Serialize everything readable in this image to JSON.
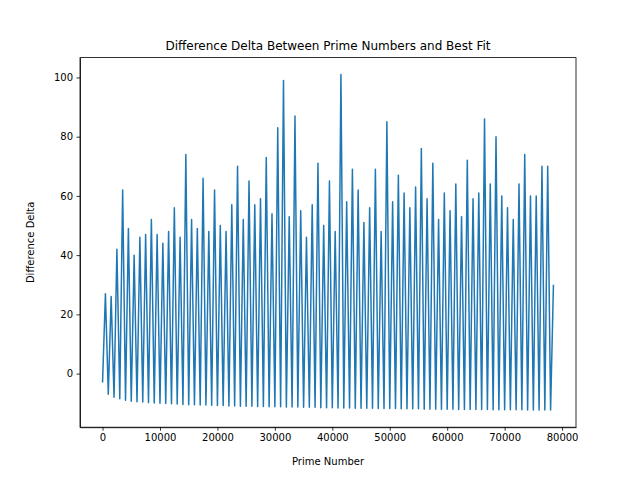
{
  "chart_data": {
    "type": "line",
    "title": "Difference Delta Between Prime Numbers and Best Fit",
    "x_label": "Prime Number",
    "y_label": "Difference Delta",
    "color": "#1f77b4",
    "grid": false,
    "xlim": [
      -3925,
      82425
    ],
    "ylim": [
      -18.1,
      106.7
    ],
    "xticks": [
      0,
      10000,
      20000,
      30000,
      40000,
      50000,
      60000,
      70000,
      80000
    ],
    "yticks": [
      0,
      20,
      40,
      60,
      80,
      100
    ],
    "x": [
      0,
      500,
      1000,
      1500,
      2000,
      2500,
      3000,
      3500,
      4000,
      4500,
      5000,
      5500,
      6000,
      6500,
      7000,
      7500,
      8000,
      8500,
      9000,
      9500,
      10000,
      10500,
      11000,
      11500,
      12000,
      12500,
      13000,
      13500,
      14000,
      14500,
      15000,
      15500,
      16000,
      16500,
      17000,
      17500,
      18000,
      18500,
      19000,
      19500,
      20000,
      20500,
      21000,
      21500,
      22000,
      22500,
      23000,
      23500,
      24000,
      24500,
      25000,
      25500,
      26000,
      26500,
      27000,
      27500,
      28000,
      28500,
      29000,
      29500,
      30000,
      30500,
      31000,
      31500,
      32000,
      32500,
      33000,
      33500,
      34000,
      34500,
      35000,
      35500,
      36000,
      36500,
      37000,
      37500,
      38000,
      38500,
      39000,
      39500,
      40000,
      40500,
      41000,
      41500,
      42000,
      42500,
      43000,
      43500,
      44000,
      44500,
      45000,
      45500,
      46000,
      46500,
      47000,
      47500,
      48000,
      48500,
      49000,
      49500,
      50000,
      50500,
      51000,
      51500,
      52000,
      52500,
      53000,
      53500,
      54000,
      54500,
      55000,
      55500,
      56000,
      56500,
      57000,
      57500,
      58000,
      58500,
      59000,
      59500,
      60000,
      60500,
      61000,
      61500,
      62000,
      62500,
      63000,
      63500,
      64000,
      64500,
      65000,
      65500,
      66000,
      66500,
      67000,
      67500,
      68000,
      68500,
      69000,
      69500,
      70000,
      70500,
      71000,
      71500,
      72000,
      72500,
      73000,
      73500,
      74000,
      74500,
      75000,
      75500,
      76000,
      76500,
      77000,
      77500,
      78000,
      78498
    ],
    "values": [
      -3,
      27,
      -7,
      26,
      -8,
      42,
      -8.5,
      62,
      -9,
      49,
      -9.3,
      40,
      -9.5,
      46,
      -9.6,
      47,
      -9.8,
      52,
      -9.9,
      47,
      -10,
      44,
      -10.1,
      48,
      -10.2,
      56,
      -10.3,
      46,
      -10.4,
      74,
      -10.5,
      52,
      -10.5,
      49,
      -10.6,
      66,
      -10.6,
      48,
      -10.7,
      62,
      -10.8,
      50,
      -10.8,
      48,
      -10.9,
      57,
      -10.9,
      70,
      -11,
      52,
      -11,
      65,
      -11,
      57,
      -11.1,
      59,
      -11.1,
      73,
      -11.2,
      54,
      -11.2,
      83,
      -11.2,
      99,
      -11.3,
      53,
      -11.3,
      87,
      -11.3,
      55,
      -11.4,
      46,
      -11.4,
      57,
      -11.4,
      71,
      -11.5,
      50,
      -11.5,
      65,
      -11.5,
      48,
      -11.6,
      101,
      -11.6,
      58,
      -11.6,
      69,
      -11.7,
      62,
      -11.7,
      51,
      -11.7,
      56,
      -11.7,
      69,
      -11.8,
      48,
      -11.8,
      85,
      -11.8,
      58,
      -11.8,
      67,
      -11.9,
      61,
      -11.9,
      56,
      -11.9,
      63,
      -11.9,
      76,
      -12,
      59,
      -12,
      71,
      -12,
      52,
      -12,
      61,
      -12,
      55,
      -12,
      64,
      -12.1,
      53,
      -12.1,
      72,
      -12.1,
      59,
      -12.1,
      61,
      -12.1,
      86,
      -12.1,
      64,
      -12.2,
      80,
      -12.2,
      60,
      -12.2,
      56,
      -12.2,
      52,
      -12.2,
      64,
      -12.2,
      74,
      -12.3,
      60,
      -12.3,
      60,
      -12.3,
      70,
      -12.3,
      70,
      -12.3,
      30
    ]
  }
}
